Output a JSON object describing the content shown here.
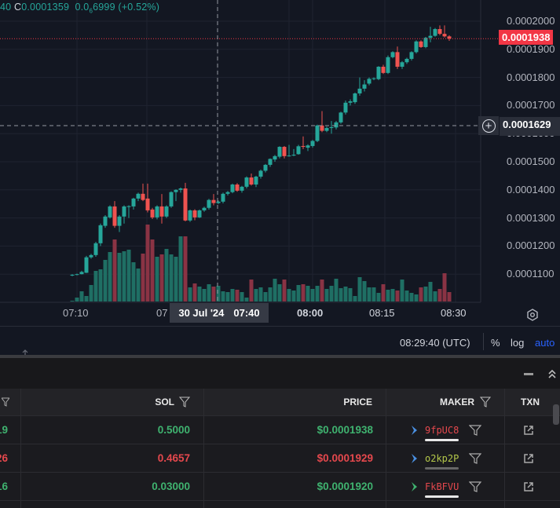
{
  "legend": {
    "prefix": "40",
    "close_label": "C",
    "close": "0.0001359",
    "change": "0.0",
    "change_sub": "6",
    "change_rest": "6999",
    "change_pct": "(+0.52%)"
  },
  "colors": {
    "up": "#26a69a",
    "down": "#ef5350",
    "vol_up": "#1f6f64",
    "vol_down": "#8a3344",
    "last_price_bg": "#f23645",
    "crosshair": "#9598a1"
  },
  "price_axis": {
    "ticks": [
      "0.0002000",
      "0.0001900",
      "0.0001800",
      "0.0001700",
      "0.0001600",
      "0.0001500",
      "0.0001400",
      "0.0001300",
      "0.0001200",
      "0.0001100"
    ],
    "last_price": "0.0001938",
    "crosshair_price": "0.0001629"
  },
  "time_axis": {
    "ticks": [
      "07:10",
      "07",
      "08:00",
      "08:15",
      "08:30"
    ],
    "crosshair_date": "30 Jul '24",
    "crosshair_time": "07:40"
  },
  "chart_data": {
    "type": "candlestick",
    "interval": "1m",
    "x_start": "07:09",
    "x_end": "08:29",
    "ylim": [
      0.000107,
      0.000203
    ],
    "candles": [
      [
        0.0001095,
        0.00011,
        0.0001093,
        0.0001098,
        1
      ],
      [
        0.0001098,
        0.0001102,
        0.0001096,
        0.00011,
        5
      ],
      [
        0.00011,
        0.0001112,
        0.0001099,
        0.0001108,
        13
      ],
      [
        0.0001105,
        0.0001165,
        0.0001104,
        0.000116,
        7
      ],
      [
        0.000116,
        0.0001172,
        0.0001155,
        0.0001168,
        21
      ],
      [
        0.0001168,
        0.0001215,
        0.0001162,
        0.000121,
        39
      ],
      [
        0.000121,
        0.000128,
        0.00012,
        0.0001274,
        41
      ],
      [
        0.0001272,
        0.000131,
        0.0001265,
        0.0001305,
        53
      ],
      [
        0.0001302,
        0.0001345,
        0.0001298,
        0.0001341,
        63
      ],
      [
        0.0001341,
        0.000136,
        0.0001265,
        0.0001272,
        79
      ],
      [
        0.0001272,
        0.000131,
        0.000125,
        0.0001305,
        62
      ],
      [
        0.0001305,
        0.0001345,
        0.000128,
        0.0001341,
        64
      ],
      [
        0.0001339,
        0.0001345,
        0.00013,
        0.0001342,
        66
      ],
      [
        0.0001341,
        0.0001372,
        0.000133,
        0.0001369,
        50
      ],
      [
        0.0001369,
        0.000139,
        0.000136,
        0.0001386,
        42
      ],
      [
        0.0001386,
        0.0001422,
        0.000136,
        0.0001364,
        61
      ],
      [
        0.0001369,
        0.0001422,
        0.000132,
        0.0001327,
        98
      ],
      [
        0.000133,
        0.0001336,
        0.0001296,
        0.0001302,
        79
      ],
      [
        0.0001302,
        0.0001345,
        0.0001295,
        0.0001341,
        57
      ],
      [
        0.0001341,
        0.0001385,
        0.000128,
        0.0001305,
        60
      ],
      [
        0.0001305,
        0.0001345,
        0.00013,
        0.0001341,
        67
      ],
      [
        0.0001341,
        0.0001395,
        0.0001336,
        0.0001392,
        60
      ],
      [
        0.0001392,
        0.0001402,
        0.000136,
        0.00014,
        57
      ],
      [
        0.00014,
        0.0001408,
        0.000139,
        0.0001405,
        83
      ],
      [
        0.0001405,
        0.0001425,
        0.0001288,
        0.0001291,
        83
      ],
      [
        0.0001291,
        0.000133,
        0.0001286,
        0.0001327,
        18
      ],
      [
        0.0001327,
        0.0001331,
        0.0001292,
        0.0001302,
        23
      ],
      [
        0.0001302,
        0.000133,
        0.00013,
        0.0001327,
        19
      ],
      [
        0.0001327,
        0.000134,
        0.0001322,
        0.0001336,
        16
      ],
      [
        0.0001336,
        0.0001368,
        0.000133,
        0.0001364,
        22
      ],
      [
        0.0001364,
        0.0001385,
        0.0001345,
        0.0001353,
        19
      ],
      [
        0.0001353,
        0.0001362,
        0.000135,
        0.0001358,
        20
      ],
      [
        0.0001358,
        0.000139,
        0.0001352,
        0.0001386,
        13
      ],
      [
        0.0001386,
        0.0001396,
        0.000138,
        0.0001392,
        12
      ],
      [
        0.0001392,
        0.0001422,
        0.0001388,
        0.0001419,
        16
      ],
      [
        0.0001419,
        0.0001424,
        0.0001393,
        0.0001397,
        15
      ],
      [
        0.0001397,
        0.0001414,
        0.000139,
        0.0001411,
        12
      ],
      [
        0.0001411,
        0.0001448,
        0.0001405,
        0.0001444,
        5
      ],
      [
        0.0001444,
        0.0001458,
        0.0001415,
        0.0001419,
        28
      ],
      [
        0.0001419,
        0.000145,
        0.000141,
        0.0001447,
        16
      ],
      [
        0.0001447,
        0.0001472,
        0.000144,
        0.0001468,
        18
      ],
      [
        0.0001468,
        0.0001492,
        0.0001462,
        0.0001489,
        12
      ],
      [
        0.0001489,
        0.0001512,
        0.0001482,
        0.000151,
        18
      ],
      [
        0.0001508,
        0.0001524,
        0.00015,
        0.000152,
        29
      ],
      [
        0.0001518,
        0.0001555,
        0.0001512,
        0.0001553,
        22
      ],
      [
        0.0001553,
        0.0001556,
        0.0001512,
        0.000152,
        28
      ],
      [
        0.000152,
        0.000156,
        0.0001518,
        0.0001522,
        16
      ],
      [
        0.0001522,
        0.0001545,
        0.000152,
        0.0001525,
        14
      ],
      [
        0.0001527,
        0.000156,
        0.0001525,
        0.0001555,
        21
      ],
      [
        0.0001556,
        0.000159,
        0.0001545,
        0.0001553,
        22
      ],
      [
        0.000155,
        0.0001562,
        0.0001538,
        0.0001558,
        20
      ],
      [
        0.0001556,
        0.0001578,
        0.000155,
        0.0001574,
        16
      ],
      [
        0.0001574,
        0.0001632,
        0.000157,
        0.0001629,
        20
      ],
      [
        0.0001629,
        0.000168,
        0.0001605,
        0.000161,
        28
      ],
      [
        0.000161,
        0.0001625,
        0.0001605,
        0.000162,
        16
      ],
      [
        0.000162,
        0.0001645,
        0.00016,
        0.0001623,
        20
      ],
      [
        0.0001622,
        0.0001645,
        0.0001615,
        0.000164,
        29
      ],
      [
        0.000164,
        0.0001678,
        0.0001635,
        0.0001675,
        17
      ],
      [
        0.0001675,
        0.0001718,
        0.0001668,
        0.000171,
        19
      ],
      [
        0.000171,
        0.0001722,
        0.00017,
        0.0001715,
        17
      ],
      [
        0.0001712,
        0.0001746,
        0.0001706,
        0.0001743,
        7
      ],
      [
        0.0001743,
        0.00018,
        0.0001735,
        0.000176,
        31
      ],
      [
        0.000176,
        0.000179,
        0.000175,
        0.0001775,
        26
      ],
      [
        0.0001778,
        0.00018,
        0.0001772,
        0.0001795,
        18
      ],
      [
        0.0001795,
        0.00018,
        0.000179,
        0.0001797,
        18
      ],
      [
        0.0001794,
        0.000184,
        0.000179,
        0.0001838,
        11
      ],
      [
        0.0001838,
        0.0001845,
        0.0001812,
        0.0001816,
        22
      ],
      [
        0.0001816,
        0.0001878,
        0.0001812,
        0.0001872,
        15
      ],
      [
        0.0001872,
        0.0001893,
        0.0001868,
        0.000189,
        16
      ],
      [
        0.000189,
        0.000191,
        0.000183,
        0.0001838,
        14
      ],
      [
        0.0001838,
        0.0001858,
        0.000183,
        0.0001854,
        28
      ],
      [
        0.0001854,
        0.000187,
        0.0001848,
        0.0001866,
        14
      ],
      [
        0.0001866,
        0.0001893,
        0.000186,
        0.000189,
        11
      ],
      [
        0.000189,
        0.0001932,
        0.0001885,
        0.0001928,
        9
      ],
      [
        0.0001928,
        0.0001932,
        0.0001905,
        0.0001908,
        18
      ],
      [
        0.0001908,
        0.0001944,
        0.0001904,
        0.0001941,
        19
      ],
      [
        0.0001941,
        0.000198,
        0.0001925,
        0.0001948,
        25
      ],
      [
        0.0001948,
        0.0001976,
        0.0001945,
        0.0001972,
        13
      ],
      [
        0.0001972,
        0.0001985,
        0.000195,
        0.0001955,
        16
      ],
      [
        0.0001955,
        0.0001985,
        0.0001942,
        0.0001946,
        36
      ],
      [
        0.0001946,
        0.000195,
        0.000193,
        0.0001938,
        12
      ]
    ]
  },
  "bottom_bar": {
    "clock": "08:29:40 (UTC)",
    "percent": "%",
    "log": "log",
    "auto": "auto"
  },
  "table": {
    "headers": {
      "sol": "SOL",
      "price": "PRICE",
      "maker": "MAKER",
      "txn": "TXN"
    },
    "rows": [
      {
        "partial": "19",
        "sol": "0.5000",
        "price": "$0.0001938",
        "maker": "9fpUC8",
        "side": "buy"
      },
      {
        "partial": "26",
        "sol": "0.4657",
        "price": "$0.0001929",
        "maker": "o2kp2P",
        "side": "sell"
      },
      {
        "partial": "16",
        "sol": "0.03000",
        "price": "$0.0001920",
        "maker": "FkBFVU",
        "side": "buy"
      }
    ]
  }
}
